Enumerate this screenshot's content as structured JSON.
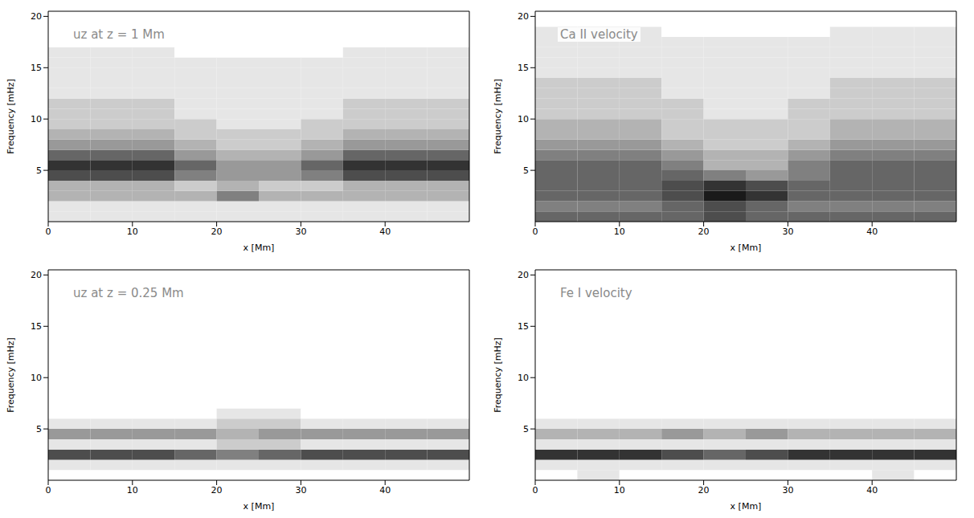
{
  "chart_data": [
    {
      "type": "heatmap",
      "title": "uz at z = 1 Mm",
      "x_label": "x [Mm]",
      "y_label": "Frequency [mHz]",
      "xlim": [
        0,
        50
      ],
      "xticks": [
        0,
        10,
        20,
        30,
        40
      ],
      "ylim": [
        0,
        20.5
      ],
      "yticks": [
        5,
        10,
        15,
        20
      ],
      "x": [
        0,
        5,
        10,
        15,
        20,
        25,
        30,
        35,
        40,
        45,
        50
      ],
      "y": [
        0,
        1,
        2,
        3,
        4,
        5,
        6,
        7,
        8,
        9,
        10,
        11,
        12,
        13,
        14,
        15,
        16,
        17,
        18,
        19,
        20
      ],
      "zlim": [
        0,
        10
      ],
      "color": "#000000",
      "cells": [
        [
          1,
          1,
          1,
          1,
          1,
          1,
          1,
          1,
          1,
          1
        ],
        [
          1,
          1,
          1,
          1,
          1,
          1,
          1,
          1,
          1,
          1
        ],
        [
          3,
          3,
          3,
          3,
          5,
          3,
          3,
          3,
          3,
          3
        ],
        [
          3,
          3,
          3,
          2,
          3,
          2,
          2,
          3,
          3,
          3
        ],
        [
          7,
          7,
          7,
          5,
          4,
          4,
          5,
          7,
          7,
          7
        ],
        [
          8,
          8,
          8,
          6,
          4,
          4,
          6,
          8,
          8,
          8
        ],
        [
          6,
          6,
          6,
          4,
          3,
          3,
          4,
          6,
          6,
          6
        ],
        [
          4,
          4,
          4,
          3,
          2,
          2,
          3,
          4,
          4,
          4
        ],
        [
          3,
          3,
          3,
          2,
          2,
          2,
          2,
          3,
          3,
          3
        ],
        [
          2,
          2,
          2,
          2,
          1,
          1,
          2,
          2,
          2,
          2
        ],
        [
          2,
          2,
          2,
          1,
          1,
          1,
          1,
          2,
          2,
          2
        ],
        [
          2,
          2,
          2,
          1,
          1,
          1,
          1,
          2,
          2,
          2
        ],
        [
          1,
          1,
          1,
          1,
          1,
          1,
          1,
          1,
          1,
          1
        ],
        [
          1,
          1,
          1,
          1,
          1,
          1,
          1,
          1,
          1,
          1
        ],
        [
          1,
          1,
          1,
          1,
          1,
          1,
          1,
          1,
          1,
          1
        ],
        [
          1,
          1,
          1,
          1,
          1,
          1,
          1,
          1,
          1,
          1
        ],
        [
          1,
          1,
          1,
          0,
          0,
          0,
          0,
          1,
          1,
          1
        ],
        [
          0,
          0,
          0,
          0,
          0,
          0,
          0,
          0,
          0,
          0
        ],
        [
          0,
          0,
          0,
          0,
          0,
          0,
          0,
          0,
          0,
          0
        ],
        [
          0,
          0,
          0,
          0,
          0,
          0,
          0,
          0,
          0,
          0
        ]
      ]
    },
    {
      "type": "heatmap",
      "title": "Ca II velocity",
      "x_label": "x [Mm]",
      "y_label": "Frequency [mHz]",
      "xlim": [
        0,
        50
      ],
      "xticks": [
        0,
        10,
        20,
        30,
        40
      ],
      "ylim": [
        0,
        20.5
      ],
      "yticks": [
        5,
        10,
        15,
        20
      ],
      "x": [
        0,
        5,
        10,
        15,
        20,
        25,
        30,
        35,
        40,
        45,
        50
      ],
      "y": [
        0,
        1,
        2,
        3,
        4,
        5,
        6,
        7,
        8,
        9,
        10,
        11,
        12,
        13,
        14,
        15,
        16,
        17,
        18,
        19,
        20
      ],
      "zlim": [
        0,
        10
      ],
      "color": "#000000",
      "cells": [
        [
          6,
          6,
          6,
          6,
          7,
          6,
          6,
          6,
          6,
          6
        ],
        [
          5,
          5,
          5,
          6,
          7,
          6,
          5,
          5,
          5,
          5
        ],
        [
          6,
          6,
          6,
          7,
          9,
          8,
          6,
          6,
          6,
          6
        ],
        [
          6,
          6,
          6,
          7,
          8,
          7,
          6,
          6,
          6,
          6
        ],
        [
          6,
          6,
          6,
          6,
          5,
          4,
          5,
          6,
          6,
          6
        ],
        [
          6,
          6,
          6,
          5,
          3,
          3,
          5,
          6,
          6,
          6
        ],
        [
          5,
          5,
          5,
          4,
          3,
          3,
          4,
          5,
          5,
          5
        ],
        [
          4,
          4,
          4,
          3,
          2,
          2,
          3,
          4,
          4,
          4
        ],
        [
          3,
          3,
          3,
          2,
          2,
          2,
          2,
          3,
          3,
          3
        ],
        [
          3,
          3,
          3,
          2,
          2,
          2,
          2,
          3,
          3,
          3
        ],
        [
          2,
          2,
          2,
          2,
          1,
          1,
          2,
          2,
          2,
          2
        ],
        [
          2,
          2,
          2,
          2,
          1,
          1,
          2,
          2,
          2,
          2
        ],
        [
          2,
          2,
          2,
          1,
          1,
          1,
          1,
          2,
          2,
          2
        ],
        [
          2,
          2,
          2,
          1,
          1,
          1,
          1,
          2,
          2,
          2
        ],
        [
          1,
          1,
          1,
          1,
          1,
          1,
          1,
          1,
          1,
          1
        ],
        [
          1,
          1,
          1,
          1,
          1,
          1,
          1,
          1,
          1,
          1
        ],
        [
          1,
          1,
          1,
          1,
          1,
          1,
          1,
          1,
          1,
          1
        ],
        [
          1,
          1,
          1,
          1,
          1,
          1,
          1,
          1,
          1,
          1
        ],
        [
          1,
          1,
          1,
          0,
          0,
          0,
          0,
          1,
          1,
          1
        ],
        [
          0,
          0,
          0,
          0,
          0,
          0,
          0,
          0,
          0,
          0
        ]
      ]
    },
    {
      "type": "heatmap",
      "title": "uz at z = 0.25 Mm",
      "x_label": "x [Mm]",
      "y_label": "Frequency [mHz]",
      "xlim": [
        0,
        50
      ],
      "xticks": [
        0,
        10,
        20,
        30,
        40
      ],
      "ylim": [
        0,
        20.5
      ],
      "yticks": [
        5,
        10,
        15,
        20
      ],
      "x": [
        0,
        5,
        10,
        15,
        20,
        25,
        30,
        35,
        40,
        45,
        50
      ],
      "y": [
        0,
        1,
        2,
        3,
        4,
        5,
        6,
        7,
        8,
        9,
        10,
        11,
        12,
        13,
        14,
        15,
        16,
        17,
        18,
        19,
        20
      ],
      "zlim": [
        0,
        10
      ],
      "color": "#000000",
      "cells": [
        [
          0,
          0,
          0,
          0,
          0,
          0,
          0,
          0,
          0,
          0
        ],
        [
          1,
          1,
          1,
          1,
          1,
          1,
          1,
          1,
          1,
          1
        ],
        [
          7,
          7,
          7,
          6,
          5,
          6,
          7,
          7,
          7,
          7
        ],
        [
          1,
          1,
          1,
          1,
          2,
          2,
          1,
          1,
          1,
          1
        ],
        [
          4,
          4,
          4,
          4,
          3,
          4,
          4,
          4,
          4,
          4
        ],
        [
          1,
          1,
          1,
          1,
          2,
          2,
          1,
          1,
          1,
          1
        ],
        [
          0,
          0,
          0,
          0,
          1,
          1,
          0,
          0,
          0,
          0
        ],
        [
          0,
          0,
          0,
          0,
          0,
          0,
          0,
          0,
          0,
          0
        ],
        [
          0,
          0,
          0,
          0,
          0,
          0,
          0,
          0,
          0,
          0
        ],
        [
          0,
          0,
          0,
          0,
          0,
          0,
          0,
          0,
          0,
          0
        ],
        [
          0,
          0,
          0,
          0,
          0,
          0,
          0,
          0,
          0,
          0
        ],
        [
          0,
          0,
          0,
          0,
          0,
          0,
          0,
          0,
          0,
          0
        ],
        [
          0,
          0,
          0,
          0,
          0,
          0,
          0,
          0,
          0,
          0
        ],
        [
          0,
          0,
          0,
          0,
          0,
          0,
          0,
          0,
          0,
          0
        ],
        [
          0,
          0,
          0,
          0,
          0,
          0,
          0,
          0,
          0,
          0
        ],
        [
          0,
          0,
          0,
          0,
          0,
          0,
          0,
          0,
          0,
          0
        ],
        [
          0,
          0,
          0,
          0,
          0,
          0,
          0,
          0,
          0,
          0
        ],
        [
          0,
          0,
          0,
          0,
          0,
          0,
          0,
          0,
          0,
          0
        ],
        [
          0,
          0,
          0,
          0,
          0,
          0,
          0,
          0,
          0,
          0
        ],
        [
          0,
          0,
          0,
          0,
          0,
          0,
          0,
          0,
          0,
          0
        ]
      ]
    },
    {
      "type": "heatmap",
      "title": "Fe I velocity",
      "x_label": "x [Mm]",
      "y_label": "Frequency [mHz]",
      "xlim": [
        0,
        50
      ],
      "xticks": [
        0,
        10,
        20,
        30,
        40
      ],
      "ylim": [
        0,
        20.5
      ],
      "yticks": [
        5,
        10,
        15,
        20
      ],
      "x": [
        0,
        5,
        10,
        15,
        20,
        25,
        30,
        35,
        40,
        45,
        50
      ],
      "y": [
        0,
        1,
        2,
        3,
        4,
        5,
        6,
        7,
        8,
        9,
        10,
        11,
        12,
        13,
        14,
        15,
        16,
        17,
        18,
        19,
        20
      ],
      "zlim": [
        0,
        10
      ],
      "color": "#000000",
      "cells": [
        [
          0,
          1,
          0,
          0,
          0,
          0,
          0,
          0,
          1,
          0
        ],
        [
          1,
          1,
          1,
          1,
          1,
          1,
          1,
          1,
          1,
          1
        ],
        [
          8,
          8,
          8,
          7,
          6,
          7,
          8,
          8,
          8,
          8
        ],
        [
          1,
          1,
          1,
          1,
          1,
          1,
          1,
          1,
          1,
          1
        ],
        [
          3,
          3,
          3,
          4,
          3,
          4,
          3,
          3,
          3,
          3
        ],
        [
          1,
          1,
          1,
          1,
          1,
          1,
          1,
          1,
          1,
          1
        ],
        [
          0,
          0,
          0,
          0,
          0,
          0,
          0,
          0,
          0,
          0
        ],
        [
          0,
          0,
          0,
          0,
          0,
          0,
          0,
          0,
          0,
          0
        ],
        [
          0,
          0,
          0,
          0,
          0,
          0,
          0,
          0,
          0,
          0
        ],
        [
          0,
          0,
          0,
          0,
          0,
          0,
          0,
          0,
          0,
          0
        ],
        [
          0,
          0,
          0,
          0,
          0,
          0,
          0,
          0,
          0,
          0
        ],
        [
          0,
          0,
          0,
          0,
          0,
          0,
          0,
          0,
          0,
          0
        ],
        [
          0,
          0,
          0,
          0,
          0,
          0,
          0,
          0,
          0,
          0
        ],
        [
          0,
          0,
          0,
          0,
          0,
          0,
          0,
          0,
          0,
          0
        ],
        [
          0,
          0,
          0,
          0,
          0,
          0,
          0,
          0,
          0,
          0
        ],
        [
          0,
          0,
          0,
          0,
          0,
          0,
          0,
          0,
          0,
          0
        ],
        [
          0,
          0,
          0,
          0,
          0,
          0,
          0,
          0,
          0,
          0
        ],
        [
          0,
          0,
          0,
          0,
          0,
          0,
          0,
          0,
          0,
          0
        ],
        [
          0,
          0,
          0,
          0,
          0,
          0,
          0,
          0,
          0,
          0
        ],
        [
          0,
          0,
          0,
          0,
          0,
          0,
          0,
          0,
          0,
          0
        ]
      ]
    }
  ]
}
